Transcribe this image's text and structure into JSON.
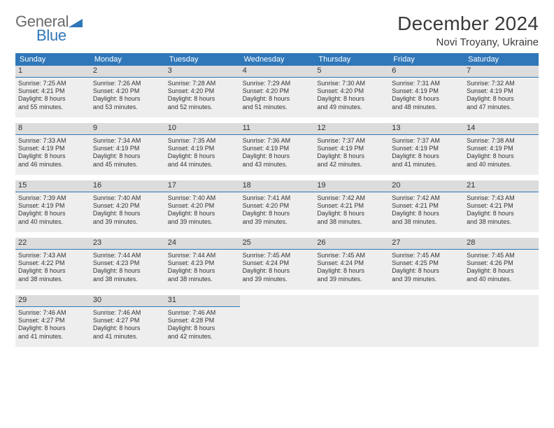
{
  "logo": {
    "text_gray": "General",
    "text_blue": "Blue",
    "shape_color": "#2f77b8"
  },
  "colors": {
    "header_bg": "#2f77b8",
    "daynum_bg": "#dcdcdc",
    "cell_bg": "#eeeeee",
    "border": "#2f77b8",
    "text": "#333333",
    "logo_gray": "#6a6a6a"
  },
  "title": "December 2024",
  "location": "Novi Troyany, Ukraine",
  "weekdays": [
    "Sunday",
    "Monday",
    "Tuesday",
    "Wednesday",
    "Thursday",
    "Friday",
    "Saturday"
  ],
  "weeks": [
    [
      {
        "num": "1",
        "sunrise": "Sunrise: 7:25 AM",
        "sunset": "Sunset: 4:21 PM",
        "day1": "Daylight: 8 hours",
        "day2": "and 55 minutes."
      },
      {
        "num": "2",
        "sunrise": "Sunrise: 7:26 AM",
        "sunset": "Sunset: 4:20 PM",
        "day1": "Daylight: 8 hours",
        "day2": "and 53 minutes."
      },
      {
        "num": "3",
        "sunrise": "Sunrise: 7:28 AM",
        "sunset": "Sunset: 4:20 PM",
        "day1": "Daylight: 8 hours",
        "day2": "and 52 minutes."
      },
      {
        "num": "4",
        "sunrise": "Sunrise: 7:29 AM",
        "sunset": "Sunset: 4:20 PM",
        "day1": "Daylight: 8 hours",
        "day2": "and 51 minutes."
      },
      {
        "num": "5",
        "sunrise": "Sunrise: 7:30 AM",
        "sunset": "Sunset: 4:20 PM",
        "day1": "Daylight: 8 hours",
        "day2": "and 49 minutes."
      },
      {
        "num": "6",
        "sunrise": "Sunrise: 7:31 AM",
        "sunset": "Sunset: 4:19 PM",
        "day1": "Daylight: 8 hours",
        "day2": "and 48 minutes."
      },
      {
        "num": "7",
        "sunrise": "Sunrise: 7:32 AM",
        "sunset": "Sunset: 4:19 PM",
        "day1": "Daylight: 8 hours",
        "day2": "and 47 minutes."
      }
    ],
    [
      {
        "num": "8",
        "sunrise": "Sunrise: 7:33 AM",
        "sunset": "Sunset: 4:19 PM",
        "day1": "Daylight: 8 hours",
        "day2": "and 46 minutes."
      },
      {
        "num": "9",
        "sunrise": "Sunrise: 7:34 AM",
        "sunset": "Sunset: 4:19 PM",
        "day1": "Daylight: 8 hours",
        "day2": "and 45 minutes."
      },
      {
        "num": "10",
        "sunrise": "Sunrise: 7:35 AM",
        "sunset": "Sunset: 4:19 PM",
        "day1": "Daylight: 8 hours",
        "day2": "and 44 minutes."
      },
      {
        "num": "11",
        "sunrise": "Sunrise: 7:36 AM",
        "sunset": "Sunset: 4:19 PM",
        "day1": "Daylight: 8 hours",
        "day2": "and 43 minutes."
      },
      {
        "num": "12",
        "sunrise": "Sunrise: 7:37 AM",
        "sunset": "Sunset: 4:19 PM",
        "day1": "Daylight: 8 hours",
        "day2": "and 42 minutes."
      },
      {
        "num": "13",
        "sunrise": "Sunrise: 7:37 AM",
        "sunset": "Sunset: 4:19 PM",
        "day1": "Daylight: 8 hours",
        "day2": "and 41 minutes."
      },
      {
        "num": "14",
        "sunrise": "Sunrise: 7:38 AM",
        "sunset": "Sunset: 4:19 PM",
        "day1": "Daylight: 8 hours",
        "day2": "and 40 minutes."
      }
    ],
    [
      {
        "num": "15",
        "sunrise": "Sunrise: 7:39 AM",
        "sunset": "Sunset: 4:19 PM",
        "day1": "Daylight: 8 hours",
        "day2": "and 40 minutes."
      },
      {
        "num": "16",
        "sunrise": "Sunrise: 7:40 AM",
        "sunset": "Sunset: 4:20 PM",
        "day1": "Daylight: 8 hours",
        "day2": "and 39 minutes."
      },
      {
        "num": "17",
        "sunrise": "Sunrise: 7:40 AM",
        "sunset": "Sunset: 4:20 PM",
        "day1": "Daylight: 8 hours",
        "day2": "and 39 minutes."
      },
      {
        "num": "18",
        "sunrise": "Sunrise: 7:41 AM",
        "sunset": "Sunset: 4:20 PM",
        "day1": "Daylight: 8 hours",
        "day2": "and 39 minutes."
      },
      {
        "num": "19",
        "sunrise": "Sunrise: 7:42 AM",
        "sunset": "Sunset: 4:21 PM",
        "day1": "Daylight: 8 hours",
        "day2": "and 38 minutes."
      },
      {
        "num": "20",
        "sunrise": "Sunrise: 7:42 AM",
        "sunset": "Sunset: 4:21 PM",
        "day1": "Daylight: 8 hours",
        "day2": "and 38 minutes."
      },
      {
        "num": "21",
        "sunrise": "Sunrise: 7:43 AM",
        "sunset": "Sunset: 4:21 PM",
        "day1": "Daylight: 8 hours",
        "day2": "and 38 minutes."
      }
    ],
    [
      {
        "num": "22",
        "sunrise": "Sunrise: 7:43 AM",
        "sunset": "Sunset: 4:22 PM",
        "day1": "Daylight: 8 hours",
        "day2": "and 38 minutes."
      },
      {
        "num": "23",
        "sunrise": "Sunrise: 7:44 AM",
        "sunset": "Sunset: 4:23 PM",
        "day1": "Daylight: 8 hours",
        "day2": "and 38 minutes."
      },
      {
        "num": "24",
        "sunrise": "Sunrise: 7:44 AM",
        "sunset": "Sunset: 4:23 PM",
        "day1": "Daylight: 8 hours",
        "day2": "and 38 minutes."
      },
      {
        "num": "25",
        "sunrise": "Sunrise: 7:45 AM",
        "sunset": "Sunset: 4:24 PM",
        "day1": "Daylight: 8 hours",
        "day2": "and 39 minutes."
      },
      {
        "num": "26",
        "sunrise": "Sunrise: 7:45 AM",
        "sunset": "Sunset: 4:24 PM",
        "day1": "Daylight: 8 hours",
        "day2": "and 39 minutes."
      },
      {
        "num": "27",
        "sunrise": "Sunrise: 7:45 AM",
        "sunset": "Sunset: 4:25 PM",
        "day1": "Daylight: 8 hours",
        "day2": "and 39 minutes."
      },
      {
        "num": "28",
        "sunrise": "Sunrise: 7:45 AM",
        "sunset": "Sunset: 4:26 PM",
        "day1": "Daylight: 8 hours",
        "day2": "and 40 minutes."
      }
    ],
    [
      {
        "num": "29",
        "sunrise": "Sunrise: 7:46 AM",
        "sunset": "Sunset: 4:27 PM",
        "day1": "Daylight: 8 hours",
        "day2": "and 41 minutes."
      },
      {
        "num": "30",
        "sunrise": "Sunrise: 7:46 AM",
        "sunset": "Sunset: 4:27 PM",
        "day1": "Daylight: 8 hours",
        "day2": "and 41 minutes."
      },
      {
        "num": "31",
        "sunrise": "Sunrise: 7:46 AM",
        "sunset": "Sunset: 4:28 PM",
        "day1": "Daylight: 8 hours",
        "day2": "and 42 minutes."
      },
      {
        "empty": true
      },
      {
        "empty": true
      },
      {
        "empty": true
      },
      {
        "empty": true
      }
    ]
  ]
}
